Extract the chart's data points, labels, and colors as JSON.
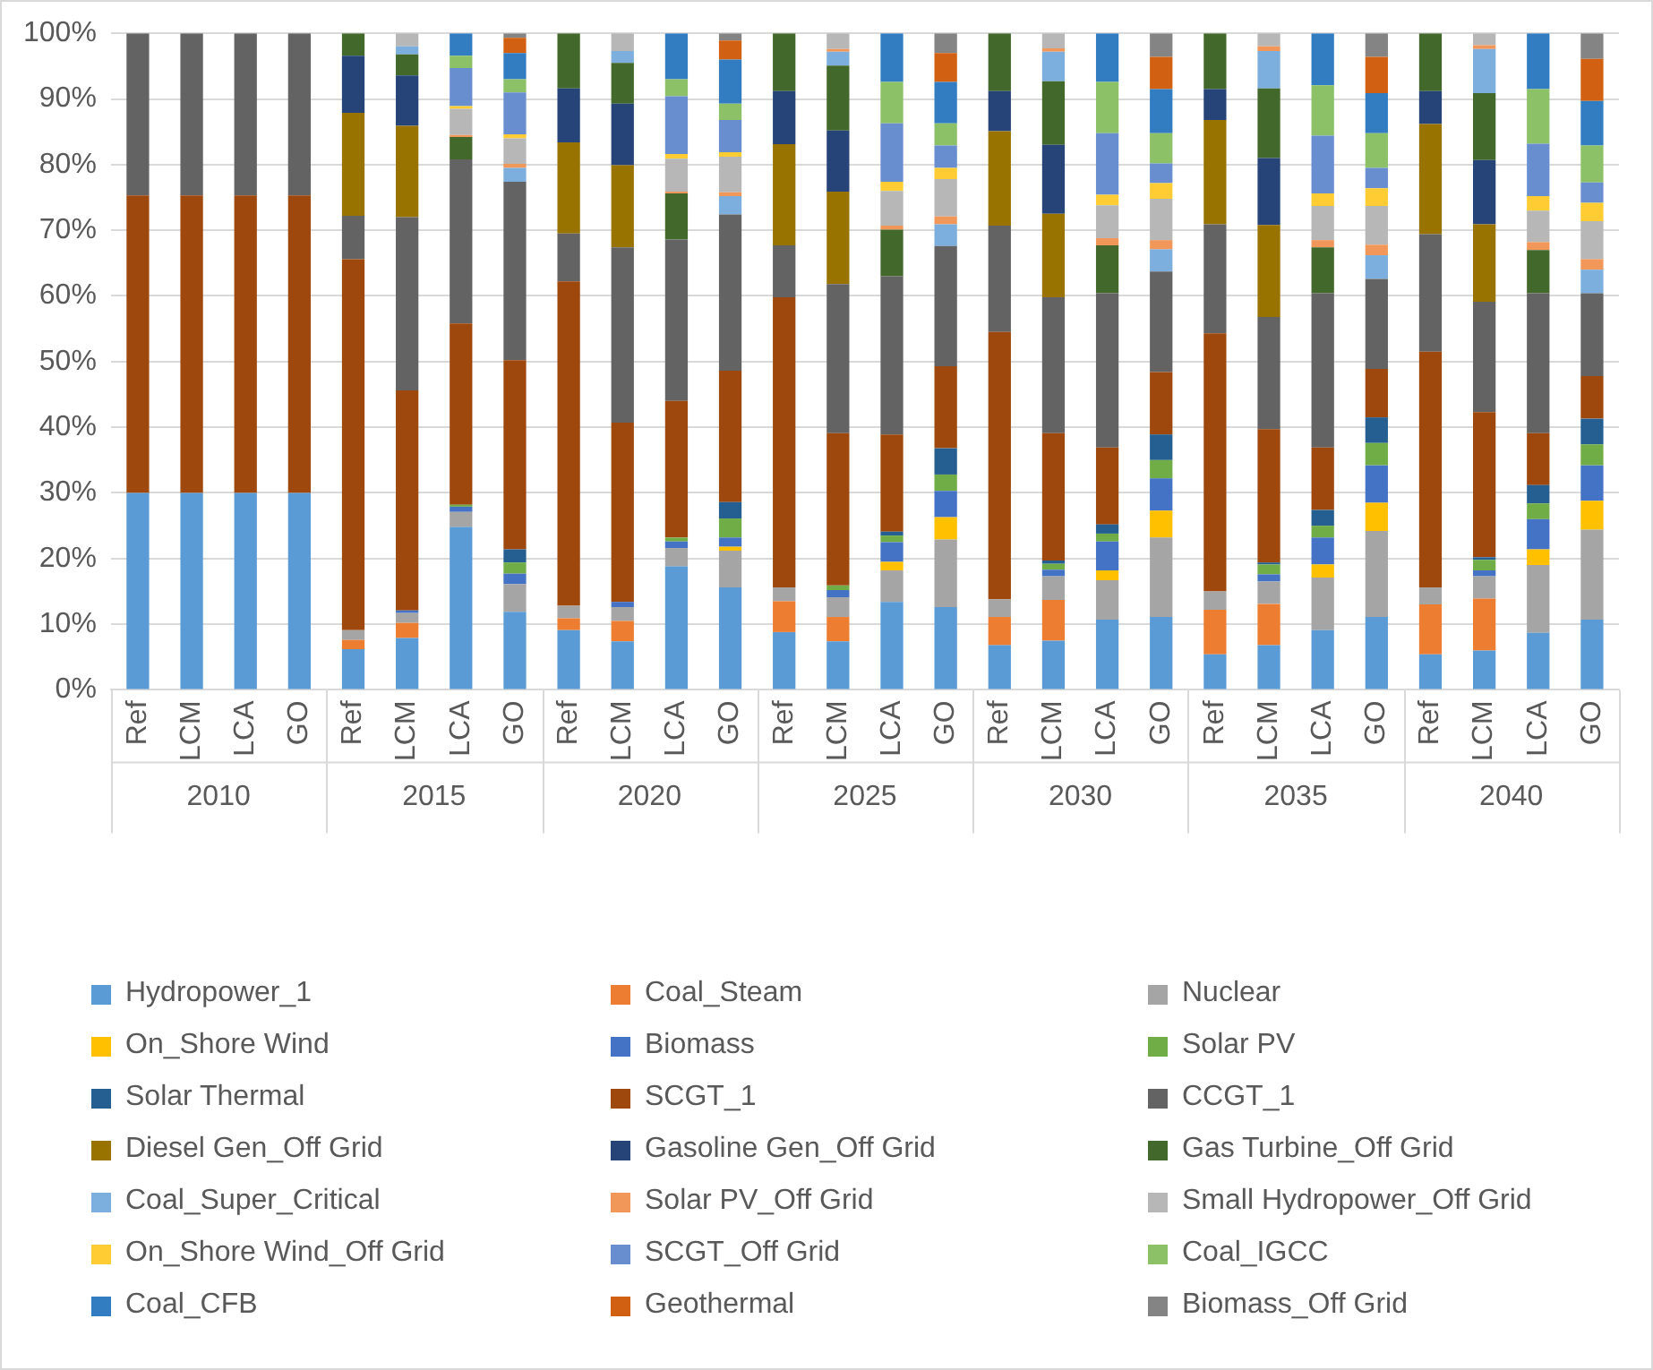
{
  "chart_data": {
    "type": "bar",
    "stacked": true,
    "grid": "y",
    "legend": "bottom",
    "categories": [
      "Ref",
      "LCM",
      "LCA",
      "GO",
      "Ref",
      "LCM",
      "LCA",
      "GO",
      "Ref",
      "LCM",
      "LCA",
      "GO",
      "Ref",
      "LCM",
      "LCA",
      "GO",
      "Ref",
      "LCM",
      "LCA",
      "GO",
      "Ref",
      "LCM",
      "LCA",
      "GO",
      "Ref",
      "LCM",
      "LCA",
      "GO"
    ],
    "annotations": [
      "2010",
      "2015",
      "2020",
      "2025",
      "2030",
      "2035",
      "2040"
    ],
    "ylim": [
      0,
      100
    ],
    "yticks": [
      {
        "value": 0,
        "label": "0%"
      },
      {
        "value": 10,
        "label": "10%"
      },
      {
        "value": 20,
        "label": "20%"
      },
      {
        "value": 30,
        "label": "30%"
      },
      {
        "value": 40,
        "label": "40%"
      },
      {
        "value": 50,
        "label": "50%"
      },
      {
        "value": 60,
        "label": "60%"
      },
      {
        "value": 70,
        "label": "70%"
      },
      {
        "value": 80,
        "label": "80%"
      },
      {
        "value": 90,
        "label": "90%"
      },
      {
        "value": 100,
        "label": "100%"
      }
    ],
    "series": [
      {
        "name": "Hydropower_1",
        "color": "#5b9bd5",
        "values": [
          30,
          30,
          30,
          30,
          6.2,
          7.9,
          24.8,
          11.9,
          9.1,
          7.4,
          18.8,
          15.6,
          8.8,
          7.4,
          13.4,
          12.6,
          6.8,
          7.5,
          10.7,
          11.1,
          5.4,
          6.8,
          9.1,
          11.1,
          5.4,
          6.0,
          8.7,
          10.7
        ]
      },
      {
        "name": "Coal_Steam",
        "color": "#ed7d31",
        "values": [
          null,
          null,
          null,
          null,
          1.4,
          2.3,
          null,
          null,
          1.8,
          3.1,
          null,
          null,
          4.7,
          3.7,
          null,
          null,
          4.3,
          6.2,
          null,
          null,
          6.8,
          6.3,
          null,
          null,
          7.6,
          7.9,
          null,
          null
        ]
      },
      {
        "name": "Nuclear",
        "color": "#a5a5a5",
        "values": [
          null,
          null,
          null,
          null,
          1.5,
          1.5,
          2.3,
          4.2,
          1.9,
          2.1,
          2.8,
          5.6,
          2.1,
          3.0,
          4.8,
          10.3,
          2.7,
          3.6,
          6.0,
          12.1,
          2.8,
          3.4,
          8.0,
          13.1,
          2.6,
          3.4,
          10.3,
          13.7
        ]
      },
      {
        "name": "On_Shore Wind",
        "color": "#ffc000",
        "values": [
          null,
          null,
          null,
          null,
          null,
          null,
          null,
          null,
          null,
          null,
          null,
          0.6,
          null,
          null,
          1.3,
          3.4,
          null,
          null,
          1.5,
          4.1,
          null,
          null,
          2.0,
          4.3,
          null,
          null,
          2.4,
          4.4
        ]
      },
      {
        "name": "Biomass",
        "color": "#4472c4",
        "values": [
          null,
          null,
          null,
          null,
          null,
          0.4,
          0.8,
          1.6,
          null,
          0.8,
          1.0,
          1.4,
          null,
          1.1,
          3.0,
          4.0,
          null,
          1.0,
          4.4,
          4.9,
          null,
          1.1,
          4.1,
          5.7,
          null,
          0.9,
          4.6,
          5.4
        ]
      },
      {
        "name": "Solar PV",
        "color": "#70ad47",
        "values": [
          null,
          null,
          null,
          null,
          null,
          null,
          0.3,
          1.7,
          null,
          null,
          0.6,
          2.9,
          null,
          0.7,
          1.0,
          2.5,
          null,
          0.9,
          1.2,
          2.8,
          null,
          1.5,
          1.8,
          3.4,
          null,
          1.6,
          2.4,
          3.2
        ]
      },
      {
        "name": "Solar Thermal",
        "color": "#255e91",
        "values": [
          null,
          null,
          null,
          null,
          null,
          null,
          null,
          2.0,
          null,
          null,
          null,
          2.5,
          null,
          null,
          0.6,
          4.0,
          null,
          0.5,
          1.4,
          3.9,
          null,
          0.3,
          2.4,
          3.9,
          null,
          0.4,
          2.8,
          3.9
        ]
      },
      {
        "name": "SCGT_1",
        "color": "#9e480e",
        "values": [
          45.3,
          45.3,
          45.3,
          45.3,
          56.5,
          33.5,
          27.6,
          28.8,
          49.4,
          27.3,
          20.8,
          20.0,
          44.2,
          23.2,
          14.8,
          12.5,
          40.7,
          19.4,
          11.7,
          9.5,
          39.3,
          20.3,
          9.5,
          7.4,
          35.9,
          22.1,
          7.9,
          6.5
        ]
      },
      {
        "name": "CCGT_1",
        "color": "#636363",
        "values": [
          24.7,
          24.7,
          24.7,
          24.7,
          6.6,
          26.4,
          25.0,
          27.2,
          7.3,
          26.7,
          24.6,
          23.8,
          7.9,
          22.7,
          24.1,
          18.3,
          16.2,
          20.7,
          23.5,
          15.3,
          16.6,
          17.1,
          23.5,
          13.7,
          17.9,
          16.8,
          21.3,
          12.6
        ]
      },
      {
        "name": "Diesel Gen_Off Grid",
        "color": "#997300",
        "values": [
          null,
          null,
          null,
          null,
          15.7,
          13.9,
          null,
          null,
          13.9,
          12.5,
          null,
          null,
          15.4,
          14.1,
          null,
          null,
          14.4,
          12.7,
          null,
          null,
          15.9,
          14.0,
          null,
          null,
          16.8,
          11.8,
          null,
          null
        ]
      },
      {
        "name": "Gasoline Gen_Off Grid",
        "color": "#264478",
        "values": [
          null,
          null,
          null,
          null,
          8.7,
          7.7,
          null,
          null,
          8.2,
          9.4,
          null,
          null,
          8.1,
          9.3,
          null,
          null,
          6.1,
          10.5,
          null,
          null,
          4.7,
          10.2,
          null,
          null,
          5.0,
          9.8,
          null,
          null
        ]
      },
      {
        "name": "Gas Turbine_Off Grid",
        "color": "#43682b",
        "values": [
          null,
          null,
          null,
          null,
          3.4,
          3.2,
          3.4,
          null,
          8.4,
          6.2,
          7.0,
          null,
          8.8,
          9.9,
          7.1,
          null,
          8.8,
          9.7,
          7.3,
          null,
          8.5,
          10.6,
          7.0,
          null,
          8.8,
          10.2,
          6.6,
          null
        ]
      },
      {
        "name": "Coal_Super_Critical",
        "color": "#7cafdd",
        "values": [
          null,
          null,
          null,
          null,
          null,
          1.2,
          null,
          2.1,
          null,
          1.8,
          null,
          2.8,
          null,
          2.1,
          null,
          3.3,
          null,
          4.5,
          null,
          3.4,
          null,
          5.7,
          null,
          3.6,
          null,
          6.7,
          null,
          3.6
        ]
      },
      {
        "name": "Solar PV_Off Grid",
        "color": "#f1975a",
        "values": [
          null,
          null,
          null,
          null,
          null,
          null,
          0.3,
          0.6,
          null,
          null,
          0.3,
          0.6,
          null,
          0.4,
          0.6,
          1.2,
          null,
          0.5,
          1.1,
          1.4,
          null,
          0.7,
          1.1,
          1.6,
          null,
          0.6,
          1.2,
          1.6
        ]
      },
      {
        "name": "Small Hydropower_Off Grid",
        "color": "#b7b7b7",
        "values": [
          null,
          null,
          null,
          null,
          null,
          2.0,
          4.0,
          3.9,
          null,
          2.7,
          5.0,
          5.4,
          null,
          2.4,
          5.3,
          5.7,
          null,
          2.3,
          5.0,
          6.3,
          null,
          2.0,
          5.2,
          5.9,
          null,
          1.8,
          4.8,
          5.8
        ]
      },
      {
        "name": "On_Shore Wind_Off Grid",
        "color": "#ffcd33",
        "values": [
          null,
          null,
          null,
          null,
          null,
          null,
          0.4,
          0.6,
          null,
          null,
          0.7,
          0.7,
          null,
          null,
          1.4,
          1.7,
          null,
          null,
          1.6,
          2.4,
          null,
          null,
          1.9,
          2.7,
          null,
          null,
          2.2,
          2.8
        ]
      },
      {
        "name": "SCGT_Off Grid",
        "color": "#698ed0",
        "values": [
          null,
          null,
          null,
          null,
          null,
          null,
          5.8,
          6.4,
          null,
          null,
          8.8,
          4.9,
          null,
          null,
          8.9,
          3.4,
          null,
          null,
          9.4,
          3.0,
          null,
          null,
          8.8,
          3.1,
          null,
          null,
          8.0,
          3.1
        ]
      },
      {
        "name": "Coal_IGCC",
        "color": "#8cc168",
        "values": [
          null,
          null,
          null,
          null,
          null,
          null,
          1.9,
          2.0,
          null,
          null,
          2.6,
          2.5,
          null,
          null,
          6.3,
          3.4,
          null,
          null,
          7.8,
          4.6,
          null,
          null,
          7.7,
          5.3,
          null,
          null,
          8.3,
          5.6
        ]
      },
      {
        "name": "Coal_CFB",
        "color": "#327dc2",
        "values": [
          null,
          null,
          null,
          null,
          null,
          null,
          3.4,
          4.0,
          null,
          null,
          7.0,
          6.7,
          null,
          null,
          7.4,
          6.3,
          null,
          null,
          7.4,
          6.7,
          null,
          null,
          7.9,
          6.1,
          null,
          null,
          8.5,
          6.8
        ]
      },
      {
        "name": "Geothermal",
        "color": "#d26012",
        "values": [
          null,
          null,
          null,
          null,
          null,
          null,
          null,
          2.3,
          null,
          null,
          null,
          2.9,
          null,
          null,
          null,
          4.4,
          null,
          null,
          null,
          4.9,
          null,
          null,
          null,
          5.5,
          null,
          null,
          null,
          6.4
        ]
      },
      {
        "name": "Biomass_Off Grid",
        "color": "#848484",
        "values": [
          null,
          null,
          null,
          null,
          null,
          null,
          null,
          0.7,
          null,
          null,
          null,
          1.1,
          null,
          null,
          null,
          3.0,
          null,
          null,
          null,
          3.6,
          null,
          null,
          null,
          3.6,
          null,
          null,
          null,
          3.9
        ]
      }
    ]
  }
}
